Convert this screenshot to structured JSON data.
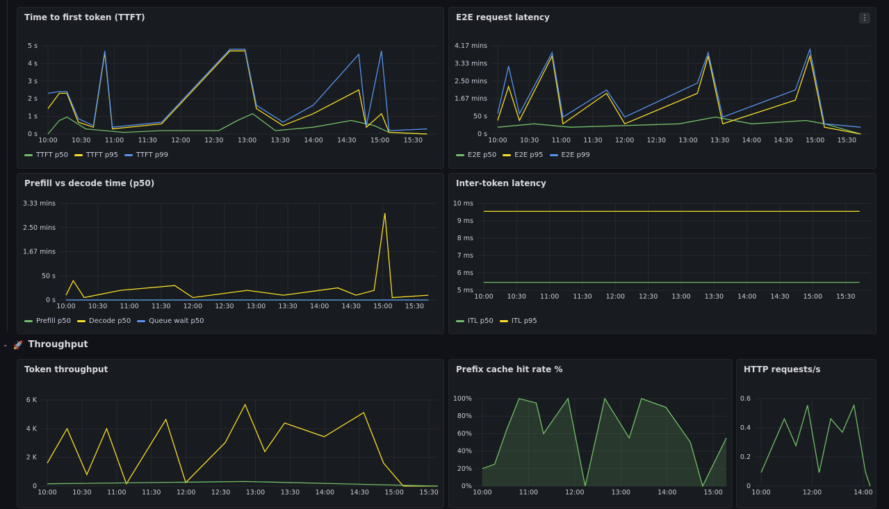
{
  "row": {
    "chevron": "⌄",
    "rocket_icon": "🚀",
    "title": "Throughput"
  },
  "menu_icon": "⋮",
  "panels": [
    {
      "id": "ttft",
      "title": "Time to first token (TTFT)",
      "legend": [
        {
          "label": "TTFT p50",
          "color": "#73bf69"
        },
        {
          "label": "TTFT p95",
          "color": "#fade2a"
        },
        {
          "label": "TTFT p99",
          "color": "#5794f2"
        }
      ]
    },
    {
      "id": "e2e",
      "title": "E2E request latency",
      "legend": [
        {
          "label": "E2E p50",
          "color": "#73bf69"
        },
        {
          "label": "E2E p95",
          "color": "#fade2a"
        },
        {
          "label": "E2E p99",
          "color": "#5794f2"
        }
      ]
    },
    {
      "id": "prefill",
      "title": "Prefill vs decode time (p50)",
      "legend": [
        {
          "label": "Prefill p50",
          "color": "#73bf69"
        },
        {
          "label": "Decode p50",
          "color": "#fade2a"
        },
        {
          "label": "Queue wait p50",
          "color": "#5794f2"
        }
      ]
    },
    {
      "id": "itl",
      "title": "Inter-token latency",
      "legend": [
        {
          "label": "ITL p50",
          "color": "#73bf69"
        },
        {
          "label": "ITL p95",
          "color": "#fade2a"
        }
      ]
    },
    {
      "id": "tokens",
      "title": "Token throughput",
      "legend": []
    },
    {
      "id": "prefix",
      "title": "Prefix cache hit rate %",
      "legend": []
    },
    {
      "id": "http",
      "title": "HTTP requests/s",
      "legend": []
    }
  ],
  "chart_data": [
    {
      "id": "ttft",
      "type": "line",
      "x": [
        "10:00",
        "10:30",
        "11:00",
        "11:30",
        "12:00",
        "12:30",
        "13:00",
        "13:30",
        "14:00",
        "14:30",
        "15:00",
        "15:30"
      ],
      "y_ticks": [
        "0 s",
        "1 s",
        "2 s",
        "3 s",
        "4 s",
        "5 s"
      ],
      "ylim": [
        0,
        5.2
      ],
      "series": [
        {
          "name": "TTFT p50",
          "color": "#73bf69",
          "points": [
            [
              0,
              0
            ],
            [
              0.03,
              0.8
            ],
            [
              0.05,
              1
            ],
            [
              0.1,
              0.3
            ],
            [
              0.2,
              0.1
            ],
            [
              0.3,
              0.2
            ],
            [
              0.45,
              0.2
            ],
            [
              0.5,
              0.8
            ],
            [
              0.54,
              1.2
            ],
            [
              0.6,
              0.2
            ],
            [
              0.7,
              0.4
            ],
            [
              0.8,
              0.8
            ],
            [
              0.86,
              0.5
            ],
            [
              0.9,
              0.1
            ],
            [
              1,
              0
            ]
          ]
        },
        {
          "name": "TTFT p95",
          "color": "#fade2a",
          "points": [
            [
              0,
              1.5
            ],
            [
              0.03,
              2.4
            ],
            [
              0.05,
              2.4
            ],
            [
              0.08,
              0.7
            ],
            [
              0.12,
              0.4
            ],
            [
              0.15,
              4.8
            ],
            [
              0.17,
              0.3
            ],
            [
              0.3,
              0.6
            ],
            [
              0.48,
              4.9
            ],
            [
              0.52,
              4.9
            ],
            [
              0.55,
              1.5
            ],
            [
              0.62,
              0.5
            ],
            [
              0.7,
              1.2
            ],
            [
              0.82,
              2.6
            ],
            [
              0.84,
              0.4
            ],
            [
              0.88,
              1.2
            ],
            [
              0.9,
              0.1
            ],
            [
              1,
              0
            ]
          ]
        },
        {
          "name": "TTFT p99",
          "color": "#5794f2",
          "points": [
            [
              0,
              2.4
            ],
            [
              0.03,
              2.5
            ],
            [
              0.05,
              2.5
            ],
            [
              0.08,
              0.9
            ],
            [
              0.12,
              0.5
            ],
            [
              0.15,
              4.9
            ],
            [
              0.17,
              0.4
            ],
            [
              0.3,
              0.7
            ],
            [
              0.48,
              5
            ],
            [
              0.52,
              5
            ],
            [
              0.55,
              1.7
            ],
            [
              0.62,
              0.7
            ],
            [
              0.7,
              1.7
            ],
            [
              0.82,
              4.7
            ],
            [
              0.84,
              0.5
            ],
            [
              0.88,
              4.9
            ],
            [
              0.9,
              0.2
            ],
            [
              1,
              0.3
            ]
          ]
        }
      ]
    },
    {
      "id": "e2e",
      "type": "line",
      "x": [
        "10:00",
        "10:30",
        "11:00",
        "11:30",
        "12:00",
        "12:30",
        "13:00",
        "13:30",
        "14:00",
        "14:30",
        "15:00",
        "15:30"
      ],
      "y_ticks": [
        "0 s",
        "50 s",
        "1.67 mins",
        "2.50 mins",
        "3.33 mins",
        "4.17 mins"
      ],
      "ylim": [
        0,
        260
      ],
      "series": [
        {
          "name": "E2E p50",
          "color": "#73bf69",
          "points": [
            [
              0,
              20
            ],
            [
              0.1,
              30
            ],
            [
              0.2,
              20
            ],
            [
              0.35,
              25
            ],
            [
              0.5,
              30
            ],
            [
              0.6,
              50
            ],
            [
              0.7,
              30
            ],
            [
              0.85,
              40
            ],
            [
              0.9,
              30
            ],
            [
              1,
              0
            ]
          ]
        },
        {
          "name": "E2E p95",
          "color": "#fade2a",
          "points": [
            [
              0,
              40
            ],
            [
              0.03,
              140
            ],
            [
              0.06,
              40
            ],
            [
              0.15,
              230
            ],
            [
              0.18,
              30
            ],
            [
              0.3,
              120
            ],
            [
              0.35,
              30
            ],
            [
              0.55,
              120
            ],
            [
              0.58,
              230
            ],
            [
              0.62,
              30
            ],
            [
              0.82,
              100
            ],
            [
              0.86,
              230
            ],
            [
              0.9,
              20
            ],
            [
              1,
              0
            ]
          ]
        },
        {
          "name": "E2E p99",
          "color": "#5794f2",
          "points": [
            [
              0,
              60
            ],
            [
              0.03,
              200
            ],
            [
              0.06,
              60
            ],
            [
              0.15,
              240
            ],
            [
              0.18,
              50
            ],
            [
              0.3,
              130
            ],
            [
              0.35,
              50
            ],
            [
              0.55,
              150
            ],
            [
              0.58,
              240
            ],
            [
              0.62,
              50
            ],
            [
              0.82,
              130
            ],
            [
              0.86,
              250
            ],
            [
              0.9,
              30
            ],
            [
              1,
              20
            ]
          ]
        }
      ]
    },
    {
      "id": "prefill",
      "type": "line",
      "x": [
        "10:00",
        "10:30",
        "11:00",
        "11:30",
        "12:00",
        "12:30",
        "13:00",
        "13:30",
        "14:00",
        "14:30",
        "15:00",
        "15:30"
      ],
      "y_ticks": [
        "0 s",
        "50 s",
        "1.67 mins",
        "2.50 mins",
        "3.33 mins"
      ],
      "ylim": [
        0,
        200
      ],
      "series": [
        {
          "name": "Prefill p50",
          "color": "#73bf69",
          "points": [
            [
              0,
              0
            ],
            [
              1,
              0
            ]
          ]
        },
        {
          "name": "Decode p50",
          "color": "#fade2a",
          "points": [
            [
              0,
              10
            ],
            [
              0.02,
              40
            ],
            [
              0.05,
              5
            ],
            [
              0.15,
              20
            ],
            [
              0.3,
              30
            ],
            [
              0.35,
              5
            ],
            [
              0.5,
              20
            ],
            [
              0.6,
              10
            ],
            [
              0.75,
              25
            ],
            [
              0.8,
              10
            ],
            [
              0.85,
              20
            ],
            [
              0.88,
              180
            ],
            [
              0.9,
              5
            ],
            [
              1,
              10
            ]
          ]
        },
        {
          "name": "Queue wait p50",
          "color": "#5794f2",
          "points": [
            [
              0,
              0
            ],
            [
              1,
              0
            ]
          ]
        }
      ]
    },
    {
      "id": "itl",
      "type": "line",
      "x": [
        "10:00",
        "10:30",
        "11:00",
        "11:30",
        "12:00",
        "12:30",
        "13:00",
        "13:30",
        "14:00",
        "14:30",
        "15:00",
        "15:30"
      ],
      "y_ticks": [
        "5 ms",
        "6 ms",
        "7 ms",
        "8 ms",
        "9 ms",
        "10 ms"
      ],
      "ylim": [
        4.5,
        10
      ],
      "series": [
        {
          "name": "ITL p50",
          "color": "#73bf69",
          "points": [
            [
              0,
              5
            ],
            [
              1,
              5
            ]
          ]
        },
        {
          "name": "ITL p95",
          "color": "#fade2a",
          "points": [
            [
              0,
              9.5
            ],
            [
              1,
              9.5
            ]
          ]
        }
      ]
    },
    {
      "id": "tokens",
      "type": "line",
      "x": [
        "10:00",
        "10:30",
        "11:00",
        "11:30",
        "12:00",
        "12:30",
        "13:00",
        "13:30",
        "14:00",
        "14:30",
        "15:00",
        "15:30"
      ],
      "y_ticks": [
        "0",
        "2 K",
        "4 K",
        "6 K"
      ],
      "ylim": [
        0,
        7500
      ],
      "series": [
        {
          "name": "",
          "color": "#fade2a",
          "points": [
            [
              0,
              2000
            ],
            [
              0.05,
              5000
            ],
            [
              0.1,
              1000
            ],
            [
              0.15,
              5000
            ],
            [
              0.2,
              200
            ],
            [
              0.3,
              5800
            ],
            [
              0.35,
              300
            ],
            [
              0.45,
              3800
            ],
            [
              0.5,
              7100
            ],
            [
              0.55,
              3000
            ],
            [
              0.6,
              5500
            ],
            [
              0.7,
              4300
            ],
            [
              0.8,
              6400
            ],
            [
              0.85,
              2000
            ],
            [
              0.9,
              0
            ],
            [
              1,
              0
            ]
          ]
        },
        {
          "name": "",
          "color": "#73bf69",
          "points": [
            [
              0,
              200
            ],
            [
              0.5,
              400
            ],
            [
              1,
              0
            ]
          ]
        }
      ]
    },
    {
      "id": "prefix",
      "type": "area",
      "x": [
        "10:00",
        "11:00",
        "12:00",
        "13:00",
        "14:00",
        "15:00"
      ],
      "y_ticks": [
        "0%",
        "20%",
        "40%",
        "60%",
        "80%",
        "100%"
      ],
      "ylim": [
        0,
        100
      ],
      "series": [
        {
          "name": "",
          "color": "#73bf69",
          "points": [
            [
              0,
              20
            ],
            [
              0.05,
              25
            ],
            [
              0.1,
              65
            ],
            [
              0.15,
              100
            ],
            [
              0.22,
              95
            ],
            [
              0.25,
              60
            ],
            [
              0.35,
              100
            ],
            [
              0.42,
              0
            ],
            [
              0.5,
              100
            ],
            [
              0.6,
              55
            ],
            [
              0.65,
              100
            ],
            [
              0.75,
              90
            ],
            [
              0.85,
              50
            ],
            [
              0.9,
              0
            ],
            [
              1,
              55
            ]
          ]
        }
      ]
    },
    {
      "id": "http",
      "type": "line",
      "x": [
        "10:00",
        "12:00",
        "14:00"
      ],
      "y_ticks": [
        "0",
        "0.2",
        "0.4",
        "0.6"
      ],
      "ylim": [
        0,
        0.65
      ],
      "series": [
        {
          "name": "",
          "color": "#73bf69",
          "points": [
            [
              0,
              0.1
            ],
            [
              0.2,
              0.5
            ],
            [
              0.3,
              0.3
            ],
            [
              0.4,
              0.6
            ],
            [
              0.5,
              0.1
            ],
            [
              0.6,
              0.5
            ],
            [
              0.7,
              0.4
            ],
            [
              0.8,
              0.6
            ],
            [
              0.9,
              0.1
            ],
            [
              1,
              0
            ]
          ]
        }
      ]
    }
  ]
}
